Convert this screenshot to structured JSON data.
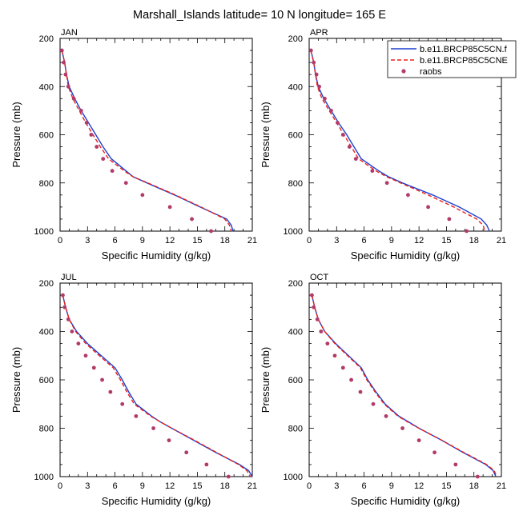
{
  "title": "Marshall_Islands  latitude= 10 N longitude= 165 E",
  "legend": {
    "placement": "top-right",
    "entries": [
      {
        "label": "b.e11.BRCP85C5CN.f",
        "color": "#1f3fcf",
        "style": "solid"
      },
      {
        "label": "b.e11.BRCP85C5CNE",
        "color": "#e8201a",
        "style": "dashed"
      },
      {
        "label": "raobs",
        "color": "#b23a6a",
        "style": "marker"
      }
    ]
  },
  "axes": {
    "xlabel": "Specific Humidity (g/kg)",
    "ylabel": "Pressure (mb)",
    "xlim": [
      0,
      21
    ],
    "ylim": [
      200,
      1000
    ],
    "y_inverted": true,
    "xticks": [
      "0",
      "3",
      "6",
      "9",
      "12",
      "15",
      "18",
      "21"
    ],
    "yticks": [
      "200",
      "400",
      "600",
      "800",
      "1000"
    ]
  },
  "chart_data": [
    {
      "type": "line",
      "panel_label": "JAN",
      "pressure": [
        250,
        300,
        350,
        400,
        450,
        500,
        550,
        600,
        650,
        700,
        750,
        775,
        800,
        850,
        900,
        950,
        975,
        1000
      ],
      "series": [
        {
          "name": "b.e11.BRCP85C5CN.f",
          "values": [
            0.2,
            0.5,
            0.7,
            1.0,
            1.6,
            2.3,
            3.1,
            3.9,
            4.7,
            5.6,
            7.2,
            8.0,
            9.5,
            12.5,
            15.3,
            18.2,
            18.7,
            18.9
          ]
        },
        {
          "name": "b.e11.BRCP85C5CNE",
          "values": [
            0.2,
            0.5,
            0.7,
            0.9,
            1.4,
            2.1,
            2.8,
            3.6,
            4.4,
            5.3,
            7.0,
            8.0,
            9.6,
            12.6,
            15.4,
            18.0,
            18.5,
            18.7
          ]
        },
        {
          "name": "raobs",
          "values": [
            0.2,
            0.4,
            0.6,
            0.9,
            1.5,
            2.3,
            2.9,
            3.4,
            4.0,
            4.7,
            5.7,
            null,
            7.2,
            9.0,
            12.0,
            14.4,
            null,
            16.5
          ]
        }
      ]
    },
    {
      "type": "line",
      "panel_label": "APR",
      "pressure": [
        250,
        300,
        350,
        400,
        450,
        500,
        550,
        600,
        650,
        700,
        750,
        775,
        800,
        850,
        900,
        950,
        975,
        1000
      ],
      "series": [
        {
          "name": "b.e11.BRCP85C5CN.f",
          "values": [
            0.2,
            0.5,
            0.7,
            1.0,
            1.6,
            2.4,
            3.2,
            4.1,
            4.9,
            5.7,
            7.6,
            8.7,
            10.2,
            13.5,
            16.4,
            18.8,
            19.4,
            19.7
          ]
        },
        {
          "name": "b.e11.BRCP85C5CNE",
          "values": [
            0.2,
            0.5,
            0.7,
            0.9,
            1.4,
            2.2,
            3.0,
            3.8,
            4.6,
            5.4,
            7.3,
            8.5,
            10.0,
            13.0,
            15.8,
            18.3,
            19.0,
            19.2
          ]
        },
        {
          "name": "raobs",
          "values": [
            0.2,
            0.5,
            0.8,
            1.1,
            1.7,
            2.4,
            3.1,
            3.7,
            4.4,
            5.1,
            6.9,
            null,
            8.5,
            10.8,
            13.0,
            15.3,
            null,
            17.2
          ]
        }
      ]
    },
    {
      "type": "line",
      "panel_label": "JUL",
      "pressure": [
        250,
        300,
        350,
        400,
        450,
        500,
        550,
        600,
        650,
        700,
        750,
        775,
        800,
        850,
        900,
        950,
        975,
        1000
      ],
      "series": [
        {
          "name": "b.e11.BRCP85C5CN.f",
          "values": [
            0.3,
            0.6,
            1.0,
            1.8,
            3.0,
            4.5,
            6.0,
            6.8,
            7.5,
            8.3,
            10.0,
            11.0,
            12.2,
            14.6,
            17.0,
            19.6,
            20.6,
            21.0
          ]
        },
        {
          "name": "b.e11.BRCP85C5CNE",
          "values": [
            0.3,
            0.6,
            1.0,
            1.7,
            2.8,
            4.3,
            5.8,
            6.6,
            7.3,
            8.1,
            9.9,
            11.0,
            12.2,
            14.7,
            17.1,
            19.5,
            20.4,
            20.8
          ]
        },
        {
          "name": "raobs",
          "values": [
            0.3,
            0.5,
            0.9,
            1.3,
            2.0,
            2.8,
            3.7,
            4.6,
            5.5,
            6.8,
            8.3,
            null,
            10.2,
            11.9,
            13.8,
            16.0,
            null,
            18.4
          ]
        }
      ]
    },
    {
      "type": "line",
      "panel_label": "OCT",
      "pressure": [
        250,
        300,
        350,
        400,
        450,
        500,
        550,
        600,
        650,
        700,
        750,
        775,
        800,
        850,
        900,
        950,
        975,
        1000
      ],
      "series": [
        {
          "name": "b.e11.BRCP85C5CN.f",
          "values": [
            0.3,
            0.6,
            1.0,
            1.7,
            2.9,
            4.3,
            5.7,
            6.4,
            7.3,
            8.3,
            9.8,
            10.9,
            12.0,
            14.5,
            16.8,
            19.3,
            20.1,
            20.4
          ]
        },
        {
          "name": "b.e11.BRCP85C5CNE",
          "values": [
            0.3,
            0.6,
            1.0,
            1.7,
            2.8,
            4.2,
            5.6,
            6.3,
            7.2,
            8.2,
            9.7,
            10.8,
            12.0,
            14.5,
            16.9,
            19.4,
            20.2,
            20.5
          ]
        },
        {
          "name": "raobs",
          "values": [
            0.3,
            0.5,
            0.9,
            1.3,
            2.0,
            2.8,
            3.7,
            4.6,
            5.6,
            7.0,
            8.4,
            null,
            10.2,
            12.0,
            13.7,
            16.0,
            null,
            18.4
          ]
        }
      ]
    }
  ]
}
